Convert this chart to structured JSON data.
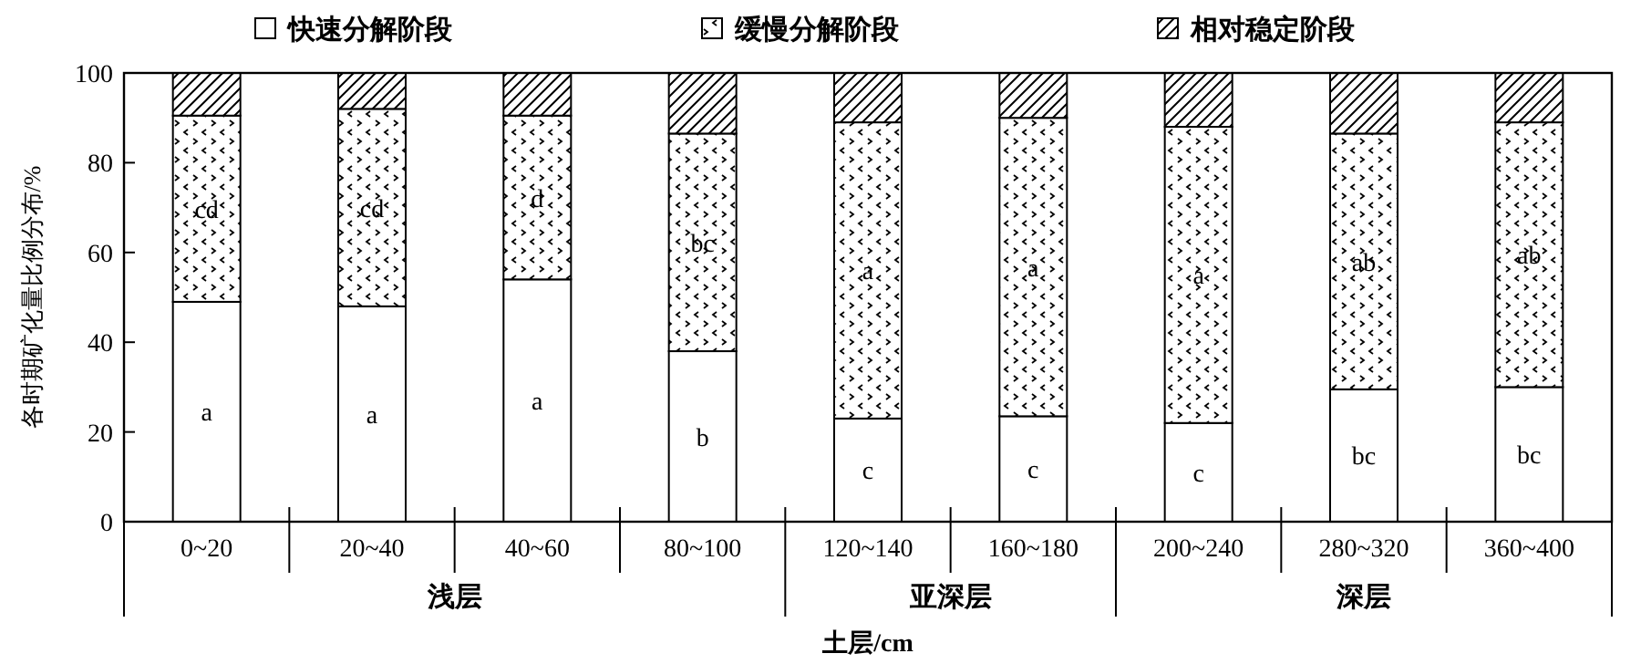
{
  "chart_data": {
    "type": "bar",
    "stacked": true,
    "xlabel": "土层/cm",
    "ylabel": "各时期矿化量比例分布/%",
    "categories": [
      "0~20",
      "20~40",
      "40~60",
      "80~100",
      "120~140",
      "160~180",
      "200~240",
      "280~320",
      "360~400"
    ],
    "series": [
      {
        "name": "快速分解阶段",
        "color": "#ffffff",
        "values": [
          49,
          48,
          54,
          38,
          23,
          23.5,
          22,
          29.5,
          30
        ],
        "value_labels": [
          "a",
          "a",
          "a",
          "b",
          "c",
          "c",
          "c",
          "bc",
          "bc"
        ]
      },
      {
        "name": "缓慢分解阶段",
        "color": "#000000",
        "values": [
          41.5,
          44,
          36.5,
          48.5,
          66,
          66.5,
          66,
          57,
          59
        ],
        "value_labels": [
          "cd",
          "cd",
          "d",
          "bc",
          "a",
          "a",
          "a",
          "ab",
          "ab"
        ]
      },
      {
        "name": "相对稳定阶段",
        "color": "#000000",
        "values": [
          9.5,
          8,
          9.5,
          13.5,
          11,
          10,
          12,
          13.5,
          11
        ],
        "value_labels": [
          null,
          null,
          null,
          null,
          null,
          null,
          null,
          null,
          null
        ]
      }
    ],
    "annotations": [
      "浅层",
      "亚深层",
      "深层"
    ],
    "ylim": [
      0,
      100
    ],
    "yticks": [
      0,
      20,
      40,
      60,
      80,
      100
    ],
    "legend": "top"
  }
}
